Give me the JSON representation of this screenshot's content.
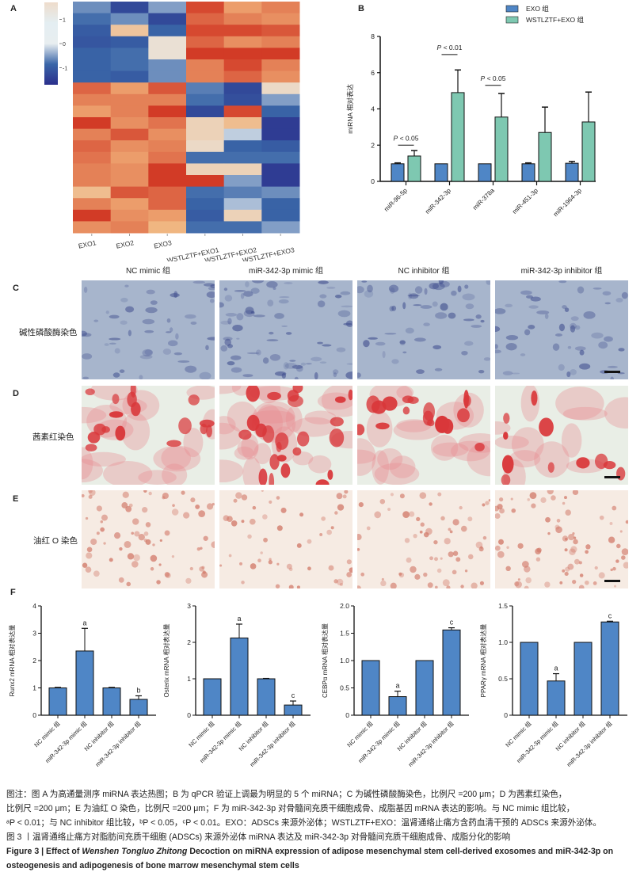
{
  "figure": {
    "panel_labels": {
      "A": "A",
      "B": "B",
      "C": "C",
      "D": "D",
      "E": "E",
      "F": "F"
    },
    "groups": [
      "NC mimic 组",
      "miR-342-3p mimic 组",
      "NC inhibitor 组",
      "miR-342-3p inhibitor 组"
    ],
    "rows": [
      {
        "id": "C",
        "label": "碱性磷酸酶染色",
        "stain": "alp",
        "colors": {
          "base": "#a7b5cc",
          "spot": "#3d4b8c"
        },
        "groups_intensity": [
          0.55,
          0.8,
          0.6,
          0.55
        ]
      },
      {
        "id": "D",
        "label": "茜素红染色",
        "stain": "alizarin",
        "colors": {
          "base": "#e9eee6",
          "spot": "#d9373a",
          "haze": "#e88a8f"
        },
        "groups_intensity": [
          0.6,
          0.85,
          0.6,
          0.4
        ]
      },
      {
        "id": "E",
        "label": "油红 O 染色",
        "stain": "oilred",
        "colors": {
          "base": "#f6ebe3",
          "spot": "#d27a6a"
        },
        "groups_intensity": [
          0.55,
          0.4,
          0.5,
          0.6
        ]
      }
    ]
  },
  "chart_data": [
    {
      "id": "A",
      "type": "heatmap",
      "title": "",
      "columns": [
        "EXO1",
        "EXO2",
        "EXO3",
        "WSTLZTF+EXO1",
        "WSTLZTF+EXO2",
        "WSTLZTF+EXO3"
      ],
      "colorbar": {
        "ticks": [
          1,
          0,
          -1
        ],
        "range": [
          -1.7,
          1.7
        ],
        "colors": [
          "#2b2f8c",
          "#3a66a8",
          "#e8eef0",
          "#f1b27a",
          "#d23b26"
        ]
      },
      "values": [
        [
          -0.6,
          -1.3,
          -0.5,
          1.6,
          1.0,
          1.2
        ],
        [
          -0.8,
          -0.6,
          -1.3,
          1.4,
          1.2,
          1.1
        ],
        [
          -1.0,
          0.6,
          -0.9,
          1.6,
          1.6,
          1.5
        ],
        [
          -1.1,
          -1.0,
          0.2,
          1.4,
          1.1,
          1.2
        ],
        [
          -0.9,
          -0.8,
          0.2,
          1.7,
          1.7,
          1.7
        ],
        [
          -0.9,
          -0.8,
          -0.6,
          1.2,
          1.6,
          1.2
        ],
        [
          -0.9,
          -1.0,
          -0.6,
          1.2,
          1.4,
          1.1
        ],
        [
          1.4,
          1.0,
          1.5,
          -0.7,
          -1.3,
          0.3
        ],
        [
          1.2,
          1.2,
          1.2,
          -0.8,
          -1.2,
          -0.5
        ],
        [
          1.0,
          1.2,
          1.8,
          -1.3,
          1.6,
          -0.9
        ],
        [
          1.7,
          1.1,
          1.3,
          0.4,
          0.7,
          -1.5
        ],
        [
          1.2,
          1.5,
          1.1,
          0.4,
          -0.2,
          -1.5
        ],
        [
          1.4,
          1.1,
          1.2,
          0.3,
          -0.9,
          -1.0
        ],
        [
          1.3,
          1.0,
          1.3,
          -0.8,
          -0.8,
          -0.8
        ],
        [
          1.2,
          1.1,
          1.7,
          0.4,
          0.4,
          -1.5
        ],
        [
          1.2,
          1.1,
          1.8,
          1.8,
          -0.5,
          -1.5
        ],
        [
          0.7,
          1.5,
          1.4,
          -0.8,
          -0.7,
          -0.6
        ],
        [
          1.2,
          1.0,
          1.4,
          -0.9,
          -0.3,
          -0.9
        ],
        [
          1.8,
          1.1,
          1.0,
          -1.0,
          0.4,
          -0.9
        ],
        [
          1.1,
          1.2,
          0.8,
          -0.8,
          -0.8,
          -0.5
        ]
      ]
    },
    {
      "id": "B",
      "type": "bar",
      "title": "",
      "xlabel": "",
      "ylabel": "miRNA 相对表达",
      "ylim": [
        0,
        8
      ],
      "yticks": [
        0,
        2,
        4,
        6,
        8
      ],
      "categories": [
        "miR-96-5p",
        "miR-342-3p",
        "miR-378a",
        "miR-451-3p",
        "miR-1964-3p"
      ],
      "series": [
        {
          "name": "EXO 组",
          "color": "#4f86c6",
          "values": [
            0.97,
            0.97,
            0.97,
            0.97,
            1.0
          ],
          "errors": [
            0.05,
            0.0,
            0.0,
            0.05,
            0.1
          ]
        },
        {
          "name": "WSTLZTF+EXO 组",
          "color": "#7ec8b1",
          "values": [
            1.4,
            4.9,
            3.55,
            2.7,
            3.28
          ],
          "errors": [
            0.3,
            1.25,
            1.3,
            1.4,
            1.65
          ]
        }
      ],
      "annotations": [
        {
          "category": "miR-96-5p",
          "text": "P < 0.05",
          "y": 2.0
        },
        {
          "category": "miR-342-3p",
          "text": "P < 0.01",
          "y": 7.0
        },
        {
          "category": "miR-378a",
          "text": "P < 0.05",
          "y": 5.3
        }
      ],
      "legend": "top-right"
    },
    {
      "id": "F1",
      "type": "bar",
      "ylabel": "Runx2 mRNA 相对表达量",
      "ylim": [
        0,
        4
      ],
      "yticks": [
        "0",
        "1",
        "2",
        "3",
        "4"
      ],
      "categories": [
        "NC mimic 组",
        "miR-342-3p mimic 组",
        "NC inhibitor 组",
        "miR-342-3p inhibitor 组"
      ],
      "values": [
        1.0,
        2.35,
        1.0,
        0.58
      ],
      "errors": [
        0.02,
        0.83,
        0.02,
        0.13
      ],
      "marks": [
        "",
        "a",
        "",
        "b"
      ],
      "color": "#4f86c6"
    },
    {
      "id": "F2",
      "type": "bar",
      "ylabel": "Osterix mRNA 相对表达量",
      "ylim": [
        0,
        3
      ],
      "yticks": [
        "0",
        "1",
        "2",
        "3"
      ],
      "categories": [
        "NC mimic 组",
        "miR-342-3p mimic 组",
        "NC inhibitor 组",
        "miR-342-3p inhibitor 组"
      ],
      "values": [
        1.0,
        2.12,
        1.0,
        0.28
      ],
      "errors": [
        0.0,
        0.38,
        0.01,
        0.11
      ],
      "marks": [
        "",
        "a",
        "",
        "c"
      ],
      "color": "#4f86c6"
    },
    {
      "id": "F3",
      "type": "bar",
      "ylabel": "CEBPα mRNA 相对表达量",
      "ylim": [
        0,
        2
      ],
      "yticks": [
        "0",
        "0.5",
        "1.0",
        "1.5",
        "2.0"
      ],
      "categories": [
        "NC mimic 组",
        "miR-342-3p mimic 组",
        "NC inhibitor 组",
        "miR-342-3p inhibitor 组"
      ],
      "values": [
        1.0,
        0.34,
        1.0,
        1.56
      ],
      "errors": [
        0.0,
        0.1,
        0.0,
        0.04
      ],
      "marks": [
        "",
        "a",
        "",
        "c"
      ],
      "color": "#4f86c6"
    },
    {
      "id": "F4",
      "type": "bar",
      "ylabel": "PPARγ mRNA 相对表达量",
      "ylim": [
        0,
        1.5
      ],
      "yticks": [
        "0",
        "0.5",
        "1.0",
        "1.5"
      ],
      "categories": [
        "NC mimic 组",
        "miR-342-3p mimic 组",
        "NC inhibitor 组",
        "miR-342-3p inhibitor 组"
      ],
      "values": [
        1.0,
        0.47,
        1.0,
        1.28
      ],
      "errors": [
        0.0,
        0.1,
        0.0,
        0.01
      ],
      "marks": [
        "",
        "a",
        "",
        "c"
      ],
      "color": "#4f86c6"
    }
  ],
  "caption": {
    "lines": [
      "图注：图 A 为高通量测序 miRNA 表达热图；B 为 qPCR 验证上调最为明显的 5 个 miRNA；C 为碱性磷酸酶染色，比例尺 =200 μm；D 为茜素红染色，",
      "比例尺 =200 μm；E 为油红 O 染色，比例尺 =200 μm；F 为 miR-342-3p 对骨髓间充质干细胞成骨、成脂基因 mRNA 表达的影响。与 NC mimic 组比较，",
      "ᵃP < 0.01；与 NC inhibitor 组比较，ᵇP < 0.05，ᶜP < 0.01。EXO：ADSCs 来源外泌体；WSTLZTF+EXO：温肾通络止痛方含药血清干预的 ADSCs 来源外泌体。",
      "图 3 丨温肾通络止痛方对脂肪间充质干细胞 (ADSCs) 来源外泌体 miRNA 表达及 miR-342-3p 对骨髓间充质干细胞成骨、成脂分化的影响"
    ],
    "english_prefix": "Figure 3  |  Effect of ",
    "english_italic": "Wenshen Tongluo Zhitong",
    "english_rest": " Decoction on miRNA expression of adipose mesenchymal stem cell-derived exosomes and miR-342-3p on",
    "english_line2": "osteogenesis and adipogenesis of bone marrow mesenchymal stem cells"
  }
}
